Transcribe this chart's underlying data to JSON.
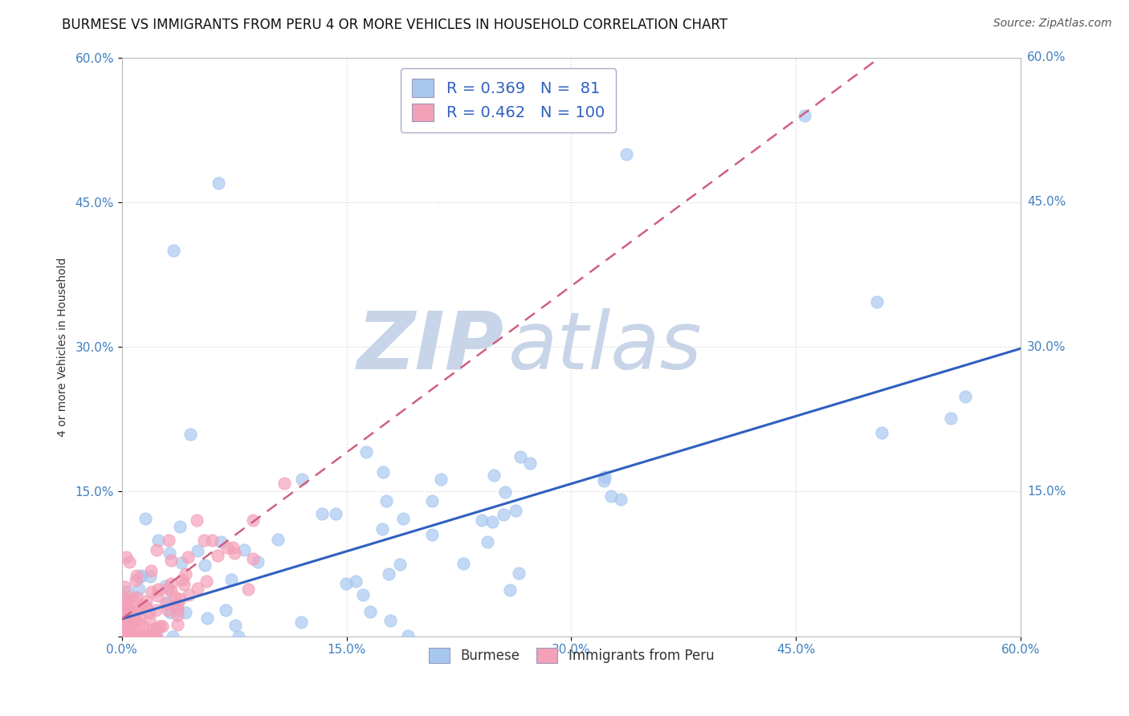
{
  "title": "BURMESE VS IMMIGRANTS FROM PERU 4 OR MORE VEHICLES IN HOUSEHOLD CORRELATION CHART",
  "source": "Source: ZipAtlas.com",
  "ylabel": "4 or more Vehicles in Household",
  "xlim": [
    0.0,
    0.6
  ],
  "ylim": [
    0.0,
    0.6
  ],
  "xticks": [
    0.0,
    0.15,
    0.3,
    0.45,
    0.6
  ],
  "yticks": [
    0.0,
    0.15,
    0.3,
    0.45,
    0.6
  ],
  "xticklabels": [
    "0.0%",
    "15.0%",
    "30.0%",
    "45.0%",
    "60.0%"
  ],
  "yticklabels": [
    "",
    "15.0%",
    "30.0%",
    "45.0%",
    "60.0%"
  ],
  "right_yticklabels": [
    "60.0%",
    "45.0%",
    "30.0%",
    "15.0%"
  ],
  "right_ytick_positions": [
    0.6,
    0.45,
    0.3,
    0.15
  ],
  "burmese_color": "#a8c8f0",
  "peru_color": "#f4a0b8",
  "burmese_R": 0.369,
  "burmese_N": 81,
  "peru_R": 0.462,
  "peru_N": 100,
  "regression_line_color_burmese": "#3060c0",
  "regression_line_color_peru": "#d06080",
  "watermark_text_ZIP": "ZIP",
  "watermark_text_atlas": "atlas",
  "watermark_color": "#c8d4e8",
  "legend_color": "#3060c0",
  "title_fontsize": 12,
  "axis_label_fontsize": 10,
  "tick_fontsize": 11,
  "background_color": "#ffffff",
  "grid_color": "#c8c8c8"
}
